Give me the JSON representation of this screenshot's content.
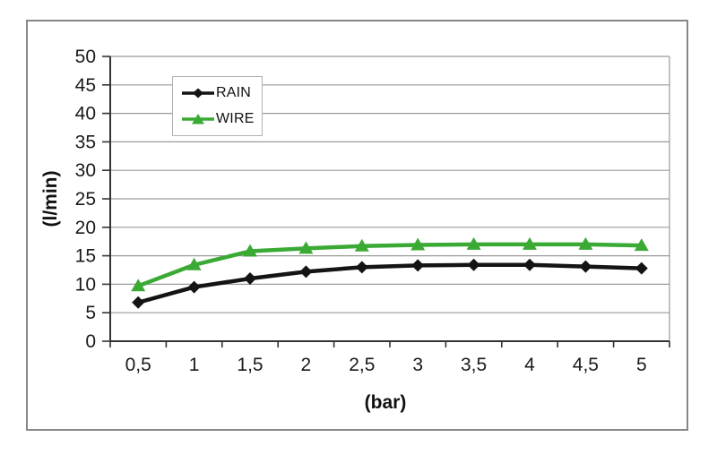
{
  "chart_data": {
    "type": "line",
    "title": "",
    "xlabel": "(bar)",
    "ylabel": "(l/min)",
    "x": [
      0.5,
      1,
      1.5,
      2,
      2.5,
      3,
      3.5,
      4,
      4.5,
      5
    ],
    "x_tick_labels": [
      "0,5",
      "1",
      "1,5",
      "2",
      "2,5",
      "3",
      "3,5",
      "4",
      "4,5",
      "5"
    ],
    "y_ticks": [
      0,
      5,
      10,
      15,
      20,
      25,
      30,
      35,
      40,
      45,
      50
    ],
    "ylim": [
      0,
      50
    ],
    "grid": true,
    "legend_position": "top-left-inside",
    "series": [
      {
        "name": "RAIN",
        "marker": "diamond",
        "color": "#141414",
        "values": [
          6.8,
          9.5,
          11.0,
          12.2,
          13.0,
          13.3,
          13.4,
          13.4,
          13.1,
          12.8
        ]
      },
      {
        "name": "WIRE",
        "marker": "triangle",
        "color": "#3aaa35",
        "values": [
          9.7,
          13.4,
          15.8,
          16.3,
          16.7,
          16.9,
          17.0,
          17.0,
          17.0,
          16.8
        ]
      }
    ]
  },
  "colors": {
    "background": "#ffffff",
    "frame_border": "#878787",
    "gridline": "#9a9a9a",
    "axis": "#333333",
    "tick_text": "#1a1a1a",
    "legend_border": "#b0b0b0"
  }
}
